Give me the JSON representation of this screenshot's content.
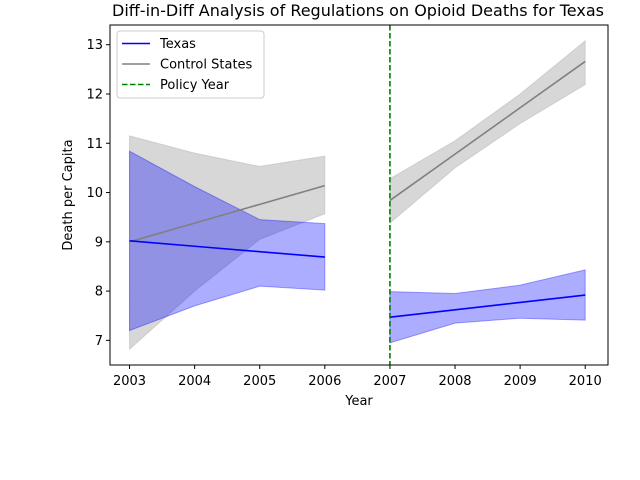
{
  "chart_data": {
    "type": "line",
    "title": "Diff-in-Diff Analysis of Regulations on Opioid Deaths for Texas",
    "xlabel": "Year",
    "ylabel": "Death per Capita",
    "xlim": [
      2002.7,
      2010.35
    ],
    "ylim": [
      6.5,
      13.4
    ],
    "xticks": [
      2003,
      2004,
      2005,
      2006,
      2007,
      2008,
      2009,
      2010
    ],
    "yticks": [
      7,
      8,
      9,
      10,
      11,
      12,
      13
    ],
    "grid": false,
    "legend_position": "upper-left",
    "series": [
      {
        "name": "Texas",
        "color": "#0000ff",
        "band_color": "#0000ff",
        "segments": [
          {
            "x": [
              2003,
              2004,
              2005,
              2006
            ],
            "y": [
              9.02,
              8.91,
              8.8,
              8.69
            ],
            "lower": [
              7.2,
              7.7,
              8.1,
              8.02
            ],
            "upper": [
              10.84,
              10.12,
              9.45,
              9.37
            ]
          },
          {
            "x": [
              2007,
              2008,
              2009,
              2010
            ],
            "y": [
              7.47,
              7.62,
              7.77,
              7.92
            ],
            "lower": [
              6.95,
              7.35,
              7.45,
              7.41
            ],
            "upper": [
              7.99,
              7.95,
              8.12,
              8.43
            ]
          }
        ]
      },
      {
        "name": "Control States",
        "color": "#808080",
        "band_color": "#a0a0a0",
        "segments": [
          {
            "x": [
              2003,
              2004,
              2005,
              2006
            ],
            "y": [
              9.0,
              9.38,
              9.76,
              10.14
            ],
            "lower": [
              6.82,
              8.0,
              9.05,
              9.57
            ],
            "upper": [
              11.15,
              10.8,
              10.53,
              10.74
            ]
          },
          {
            "x": [
              2007,
              2008,
              2009,
              2010
            ],
            "y": [
              9.84,
              10.78,
              11.72,
              12.66
            ],
            "lower": [
              9.38,
              10.5,
              11.4,
              12.19
            ],
            "upper": [
              10.28,
              11.05,
              12.0,
              13.08
            ]
          }
        ]
      }
    ],
    "vline": {
      "name": "Policy Year",
      "x": 2007,
      "color": "#008000"
    }
  }
}
